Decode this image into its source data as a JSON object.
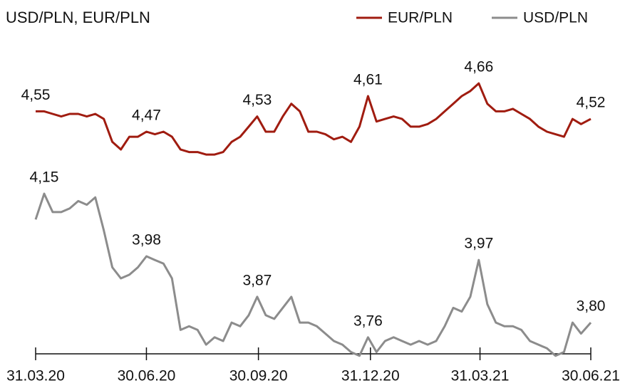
{
  "chart_data": {
    "type": "line",
    "subtitle": "USD/PLN, EUR/PLN",
    "legend": "top-right",
    "x": [
      "2020-03-31",
      "2020-04-07",
      "2020-04-14",
      "2020-04-21",
      "2020-04-28",
      "2020-05-05",
      "2020-05-12",
      "2020-05-19",
      "2020-05-26",
      "2020-06-02",
      "2020-06-09",
      "2020-06-16",
      "2020-06-23",
      "2020-06-30",
      "2020-07-07",
      "2020-07-14",
      "2020-07-21",
      "2020-07-28",
      "2020-08-04",
      "2020-08-11",
      "2020-08-18",
      "2020-08-25",
      "2020-09-01",
      "2020-09-08",
      "2020-09-15",
      "2020-09-22",
      "2020-09-29",
      "2020-10-06",
      "2020-10-13",
      "2020-10-20",
      "2020-10-27",
      "2020-11-03",
      "2020-11-10",
      "2020-11-17",
      "2020-11-24",
      "2020-12-01",
      "2020-12-08",
      "2020-12-15",
      "2020-12-22",
      "2020-12-29",
      "2021-01-05",
      "2021-01-12",
      "2021-01-19",
      "2021-01-26",
      "2021-02-02",
      "2021-02-09",
      "2021-02-16",
      "2021-02-23",
      "2021-03-02",
      "2021-03-09",
      "2021-03-16",
      "2021-03-23",
      "2021-03-30",
      "2021-04-06",
      "2021-04-13",
      "2021-04-20",
      "2021-04-27",
      "2021-05-04",
      "2021-05-11",
      "2021-05-18",
      "2021-05-25",
      "2021-06-01",
      "2021-06-08",
      "2021-06-15",
      "2021-06-22",
      "2021-06-30"
    ],
    "xlim": [
      "2020-03-31",
      "2021-06-30"
    ],
    "xticks": [
      {
        "value": "2020-03-31",
        "label": "31.03.20"
      },
      {
        "value": "2020-06-30",
        "label": "30.06.20"
      },
      {
        "value": "2020-09-30",
        "label": "30.09.20"
      },
      {
        "value": "2020-12-31",
        "label": "31.12.20"
      },
      {
        "value": "2021-03-31",
        "label": "31.03.21"
      },
      {
        "value": "2021-06-30",
        "label": "30.06.21"
      }
    ],
    "ylim": [
      3.69,
      4.56
    ],
    "y2lim": [
      3.56,
      4.82
    ],
    "series": [
      {
        "name": "EUR/PLN",
        "color": "#a01c10",
        "axis": "y2",
        "values": [
          4.55,
          4.55,
          4.54,
          4.53,
          4.54,
          4.54,
          4.53,
          4.54,
          4.52,
          4.43,
          4.4,
          4.45,
          4.45,
          4.47,
          4.46,
          4.47,
          4.45,
          4.4,
          4.39,
          4.39,
          4.38,
          4.38,
          4.39,
          4.43,
          4.45,
          4.49,
          4.53,
          4.47,
          4.47,
          4.53,
          4.58,
          4.55,
          4.47,
          4.47,
          4.46,
          4.44,
          4.45,
          4.43,
          4.49,
          4.61,
          4.51,
          4.52,
          4.53,
          4.52,
          4.49,
          4.49,
          4.5,
          4.52,
          4.55,
          4.58,
          4.61,
          4.63,
          4.66,
          4.58,
          4.55,
          4.55,
          4.56,
          4.54,
          4.52,
          4.49,
          4.47,
          4.46,
          4.45,
          4.52,
          4.5,
          4.52
        ],
        "value_labels": [
          "4,55",
          null,
          null,
          null,
          null,
          null,
          null,
          null,
          null,
          null,
          null,
          null,
          null,
          "4,47",
          null,
          null,
          null,
          null,
          null,
          null,
          null,
          null,
          null,
          null,
          null,
          null,
          "4,53",
          null,
          null,
          null,
          null,
          null,
          null,
          null,
          null,
          null,
          null,
          null,
          null,
          "4,61",
          null,
          null,
          null,
          null,
          null,
          null,
          null,
          null,
          null,
          null,
          null,
          null,
          "4,66",
          null,
          null,
          null,
          null,
          null,
          null,
          null,
          null,
          null,
          null,
          null,
          null,
          "4,52"
        ]
      },
      {
        "name": "USD/PLN",
        "color": "#8c8c8c",
        "values": [
          4.08,
          4.15,
          4.1,
          4.1,
          4.11,
          4.13,
          4.12,
          4.14,
          4.05,
          3.95,
          3.92,
          3.93,
          3.95,
          3.98,
          3.97,
          3.96,
          3.92,
          3.78,
          3.79,
          3.78,
          3.74,
          3.76,
          3.75,
          3.8,
          3.79,
          3.82,
          3.87,
          3.82,
          3.81,
          3.84,
          3.87,
          3.8,
          3.8,
          3.79,
          3.77,
          3.75,
          3.74,
          3.72,
          3.71,
          3.76,
          3.72,
          3.75,
          3.76,
          3.75,
          3.74,
          3.75,
          3.74,
          3.75,
          3.79,
          3.84,
          3.83,
          3.87,
          3.97,
          3.85,
          3.8,
          3.79,
          3.79,
          3.78,
          3.75,
          3.74,
          3.73,
          3.71,
          3.72,
          3.8,
          3.77,
          3.8
        ],
        "value_labels": [
          null,
          "4,15",
          null,
          null,
          null,
          null,
          null,
          null,
          null,
          null,
          null,
          null,
          null,
          "3,98",
          null,
          null,
          null,
          null,
          null,
          null,
          null,
          null,
          null,
          null,
          null,
          null,
          "3,87",
          null,
          null,
          null,
          null,
          null,
          null,
          null,
          null,
          null,
          null,
          null,
          null,
          "3,76",
          null,
          null,
          null,
          null,
          null,
          null,
          null,
          null,
          null,
          null,
          null,
          null,
          "3,97",
          null,
          null,
          null,
          null,
          null,
          null,
          null,
          null,
          null,
          null,
          null,
          null,
          "3,80"
        ]
      }
    ]
  }
}
